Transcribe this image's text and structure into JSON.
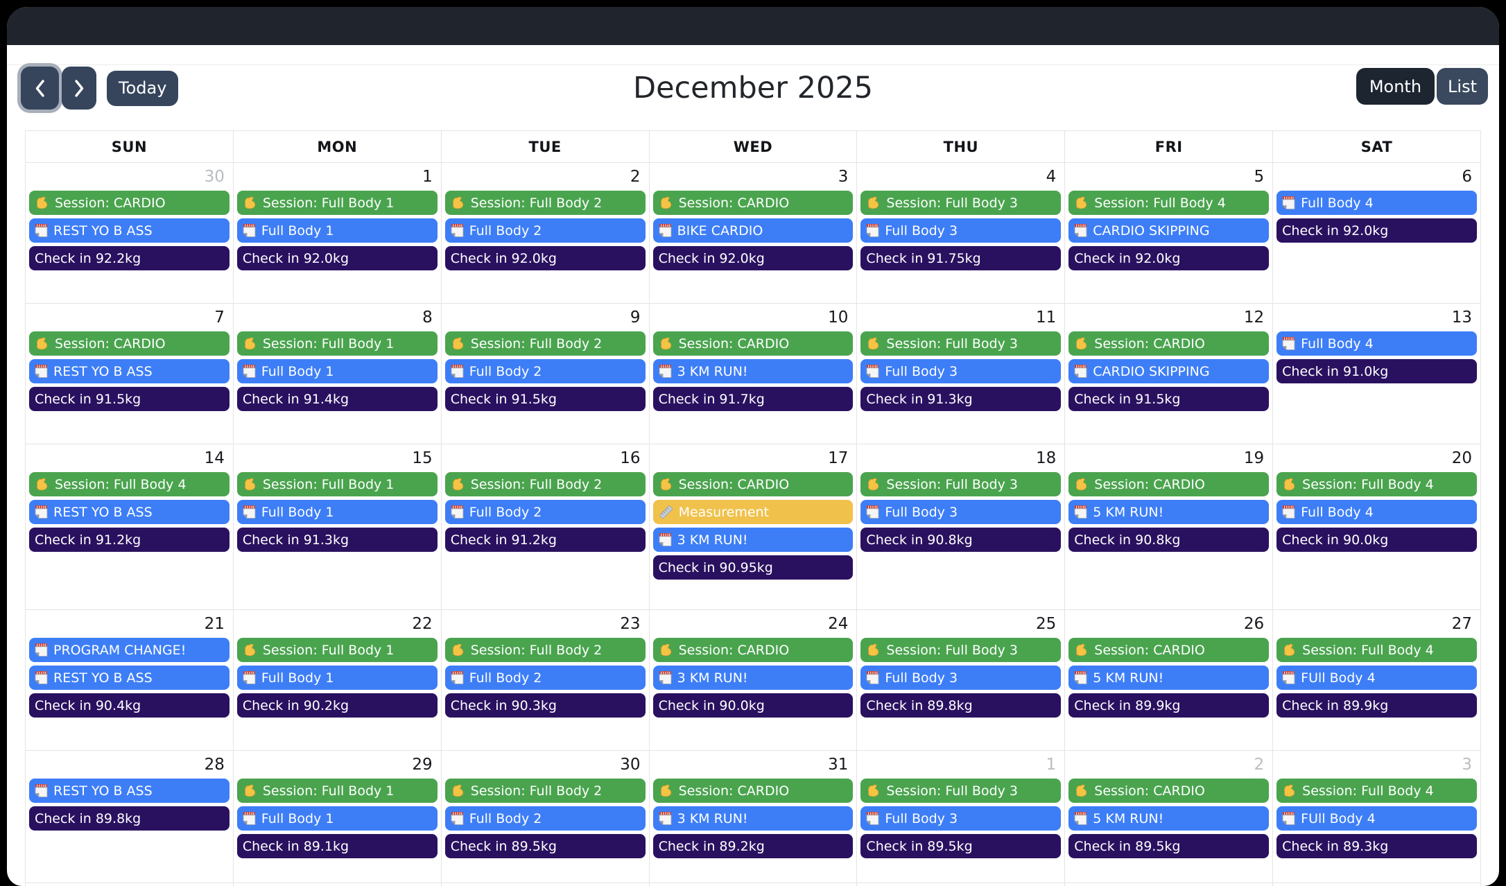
{
  "toolbar": {
    "today_label": "Today",
    "title": "December 2025",
    "month_label": "Month",
    "list_label": "List"
  },
  "colors": {
    "session_green": "#4aa44e",
    "note_blue": "#3d7ef7",
    "checkin_navy": "#2a1160",
    "measurement_yellow": "#f0c14b",
    "titlebar_dark": "#20252d",
    "button_slate": "#36455c",
    "button_active_dark": "#1d2531"
  },
  "icons": {
    "session": "muscle-icon",
    "note": "notepad-icon",
    "measurement": "ruler-icon",
    "prev": "chevron-left-icon",
    "next": "chevron-right-icon"
  },
  "calendar": {
    "day_headers": [
      "SUN",
      "MON",
      "TUE",
      "WED",
      "THU",
      "FRI",
      "SAT"
    ],
    "weeks": [
      {
        "days": [
          {
            "date": "30",
            "other_month": true,
            "events": [
              {
                "type": "session",
                "title": "Session: CARDIO"
              },
              {
                "type": "note",
                "title": "REST YO B ASS"
              },
              {
                "type": "checkin",
                "title": "Check in 92.2kg"
              }
            ]
          },
          {
            "date": "1",
            "other_month": false,
            "events": [
              {
                "type": "session",
                "title": "Session: Full Body 1"
              },
              {
                "type": "note",
                "title": "Full Body 1"
              },
              {
                "type": "checkin",
                "title": "Check in 92.0kg"
              }
            ]
          },
          {
            "date": "2",
            "other_month": false,
            "events": [
              {
                "type": "session",
                "title": "Session: Full Body 2"
              },
              {
                "type": "note",
                "title": "Full Body 2"
              },
              {
                "type": "checkin",
                "title": "Check in 92.0kg"
              }
            ]
          },
          {
            "date": "3",
            "other_month": false,
            "events": [
              {
                "type": "session",
                "title": "Session: CARDIO"
              },
              {
                "type": "note",
                "title": "BIKE CARDIO"
              },
              {
                "type": "checkin",
                "title": "Check in 92.0kg"
              }
            ]
          },
          {
            "date": "4",
            "other_month": false,
            "events": [
              {
                "type": "session",
                "title": "Session: Full Body 3"
              },
              {
                "type": "note",
                "title": "Full Body 3"
              },
              {
                "type": "checkin",
                "title": "Check in 91.75kg"
              }
            ]
          },
          {
            "date": "5",
            "other_month": false,
            "events": [
              {
                "type": "session",
                "title": "Session: Full Body 4"
              },
              {
                "type": "note",
                "title": "CARDIO SKIPPING"
              },
              {
                "type": "checkin",
                "title": "Check in 92.0kg"
              }
            ]
          },
          {
            "date": "6",
            "other_month": false,
            "events": [
              {
                "type": "note",
                "title": "Full Body 4"
              },
              {
                "type": "checkin",
                "title": "Check in 92.0kg"
              }
            ]
          }
        ]
      },
      {
        "days": [
          {
            "date": "7",
            "other_month": false,
            "events": [
              {
                "type": "session",
                "title": "Session: CARDIO"
              },
              {
                "type": "note",
                "title": "REST YO B ASS"
              },
              {
                "type": "checkin",
                "title": "Check in 91.5kg"
              }
            ]
          },
          {
            "date": "8",
            "other_month": false,
            "events": [
              {
                "type": "session",
                "title": "Session: Full Body 1"
              },
              {
                "type": "note",
                "title": "Full Body 1"
              },
              {
                "type": "checkin",
                "title": "Check in 91.4kg"
              }
            ]
          },
          {
            "date": "9",
            "other_month": false,
            "events": [
              {
                "type": "session",
                "title": "Session: Full Body 2"
              },
              {
                "type": "note",
                "title": "Full Body 2"
              },
              {
                "type": "checkin",
                "title": "Check in 91.5kg"
              }
            ]
          },
          {
            "date": "10",
            "other_month": false,
            "events": [
              {
                "type": "session",
                "title": "Session: CARDIO"
              },
              {
                "type": "note",
                "title": "3 KM RUN!"
              },
              {
                "type": "checkin",
                "title": "Check in 91.7kg"
              }
            ]
          },
          {
            "date": "11",
            "other_month": false,
            "events": [
              {
                "type": "session",
                "title": "Session: Full Body 3"
              },
              {
                "type": "note",
                "title": "Full Body 3"
              },
              {
                "type": "checkin",
                "title": "Check in 91.3kg"
              }
            ]
          },
          {
            "date": "12",
            "other_month": false,
            "events": [
              {
                "type": "session",
                "title": "Session: CARDIO"
              },
              {
                "type": "note",
                "title": "CARDIO SKIPPING"
              },
              {
                "type": "checkin",
                "title": "Check in 91.5kg"
              }
            ]
          },
          {
            "date": "13",
            "other_month": false,
            "events": [
              {
                "type": "note",
                "title": "Full Body 4"
              },
              {
                "type": "checkin",
                "title": "Check in 91.0kg"
              }
            ]
          }
        ]
      },
      {
        "days": [
          {
            "date": "14",
            "other_month": false,
            "events": [
              {
                "type": "session",
                "title": "Session: Full Body 4"
              },
              {
                "type": "note",
                "title": "REST YO B ASS"
              },
              {
                "type": "checkin",
                "title": "Check in 91.2kg"
              }
            ]
          },
          {
            "date": "15",
            "other_month": false,
            "events": [
              {
                "type": "session",
                "title": "Session: Full Body 1"
              },
              {
                "type": "note",
                "title": "Full Body 1"
              },
              {
                "type": "checkin",
                "title": "Check in 91.3kg"
              }
            ]
          },
          {
            "date": "16",
            "other_month": false,
            "events": [
              {
                "type": "session",
                "title": "Session: Full Body 2"
              },
              {
                "type": "note",
                "title": "Full Body 2"
              },
              {
                "type": "checkin",
                "title": "Check in 91.2kg"
              }
            ]
          },
          {
            "date": "17",
            "other_month": false,
            "events": [
              {
                "type": "session",
                "title": "Session: CARDIO"
              },
              {
                "type": "measurement",
                "title": "Measurement"
              },
              {
                "type": "note",
                "title": "3 KM RUN!"
              },
              {
                "type": "checkin",
                "title": "Check in 90.95kg"
              }
            ]
          },
          {
            "date": "18",
            "other_month": false,
            "events": [
              {
                "type": "session",
                "title": "Session: Full Body 3"
              },
              {
                "type": "note",
                "title": "Full Body 3"
              },
              {
                "type": "checkin",
                "title": "Check in 90.8kg"
              }
            ]
          },
          {
            "date": "19",
            "other_month": false,
            "events": [
              {
                "type": "session",
                "title": "Session: CARDIO"
              },
              {
                "type": "note",
                "title": "5 KM RUN!"
              },
              {
                "type": "checkin",
                "title": "Check in 90.8kg"
              }
            ]
          },
          {
            "date": "20",
            "other_month": false,
            "events": [
              {
                "type": "session",
                "title": "Session: Full Body 4"
              },
              {
                "type": "note",
                "title": "Full Body 4"
              },
              {
                "type": "checkin",
                "title": "Check in 90.0kg"
              }
            ]
          }
        ]
      },
      {
        "days": [
          {
            "date": "21",
            "other_month": false,
            "events": [
              {
                "type": "note",
                "title": "PROGRAM CHANGE!"
              },
              {
                "type": "note",
                "title": "REST YO B ASS"
              },
              {
                "type": "checkin",
                "title": "Check in 90.4kg"
              }
            ]
          },
          {
            "date": "22",
            "other_month": false,
            "events": [
              {
                "type": "session",
                "title": "Session: Full Body 1"
              },
              {
                "type": "note",
                "title": "Full Body 1"
              },
              {
                "type": "checkin",
                "title": "Check in 90.2kg"
              }
            ]
          },
          {
            "date": "23",
            "other_month": false,
            "events": [
              {
                "type": "session",
                "title": "Session: Full Body 2"
              },
              {
                "type": "note",
                "title": "Full Body 2"
              },
              {
                "type": "checkin",
                "title": "Check in 90.3kg"
              }
            ]
          },
          {
            "date": "24",
            "other_month": false,
            "events": [
              {
                "type": "session",
                "title": "Session: CARDIO"
              },
              {
                "type": "note",
                "title": "3 KM RUN!"
              },
              {
                "type": "checkin",
                "title": "Check in 90.0kg"
              }
            ]
          },
          {
            "date": "25",
            "other_month": false,
            "events": [
              {
                "type": "session",
                "title": "Session: Full Body 3"
              },
              {
                "type": "note",
                "title": "Full Body 3"
              },
              {
                "type": "checkin",
                "title": "Check in 89.8kg"
              }
            ]
          },
          {
            "date": "26",
            "other_month": false,
            "events": [
              {
                "type": "session",
                "title": "Session: CARDIO"
              },
              {
                "type": "note",
                "title": "5 KM RUN!"
              },
              {
                "type": "checkin",
                "title": "Check in 89.9kg"
              }
            ]
          },
          {
            "date": "27",
            "other_month": false,
            "events": [
              {
                "type": "session",
                "title": "Session: Full Body 4"
              },
              {
                "type": "note",
                "title": "FUll Body 4"
              },
              {
                "type": "checkin",
                "title": "Check in 89.9kg"
              }
            ]
          }
        ]
      },
      {
        "days": [
          {
            "date": "28",
            "other_month": false,
            "events": [
              {
                "type": "note",
                "title": "REST YO B ASS"
              },
              {
                "type": "checkin",
                "title": "Check in 89.8kg"
              }
            ]
          },
          {
            "date": "29",
            "other_month": false,
            "events": [
              {
                "type": "session",
                "title": "Session: Full Body 1"
              },
              {
                "type": "note",
                "title": "Full Body 1"
              },
              {
                "type": "checkin",
                "title": "Check in 89.1kg"
              }
            ]
          },
          {
            "date": "30",
            "other_month": false,
            "events": [
              {
                "type": "session",
                "title": "Session: Full Body 2"
              },
              {
                "type": "note",
                "title": "Full Body 2"
              },
              {
                "type": "checkin",
                "title": "Check in 89.5kg"
              }
            ]
          },
          {
            "date": "31",
            "other_month": false,
            "events": [
              {
                "type": "session",
                "title": "Session: CARDIO"
              },
              {
                "type": "note",
                "title": "3 KM RUN!"
              },
              {
                "type": "checkin",
                "title": "Check in 89.2kg"
              }
            ]
          },
          {
            "date": "1",
            "other_month": true,
            "events": [
              {
                "type": "session",
                "title": "Session: Full Body 3"
              },
              {
                "type": "note",
                "title": "Full Body 3"
              },
              {
                "type": "checkin",
                "title": "Check in 89.5kg"
              }
            ]
          },
          {
            "date": "2",
            "other_month": true,
            "events": [
              {
                "type": "session",
                "title": "Session: CARDIO"
              },
              {
                "type": "note",
                "title": "5 KM RUN!"
              },
              {
                "type": "checkin",
                "title": "Check in 89.5kg"
              }
            ]
          },
          {
            "date": "3",
            "other_month": true,
            "events": [
              {
                "type": "session",
                "title": "Session: Full Body 4"
              },
              {
                "type": "note",
                "title": "FUll Body 4"
              },
              {
                "type": "checkin",
                "title": "Check in 89.3kg"
              }
            ]
          }
        ]
      }
    ]
  }
}
